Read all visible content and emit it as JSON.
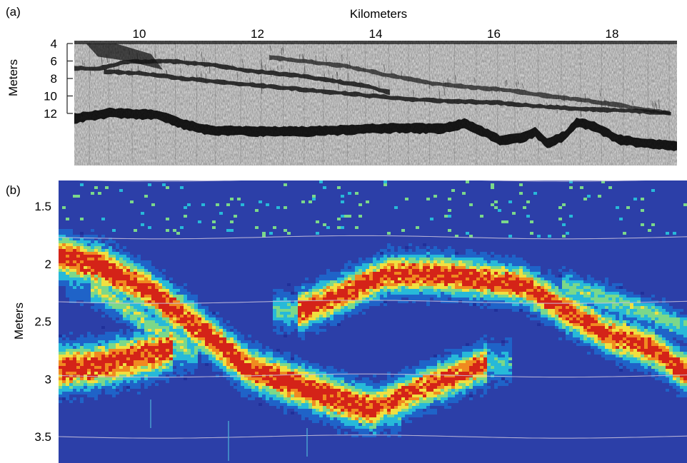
{
  "chart_data": [
    {
      "type": "heatmap",
      "panel_label": "(a)",
      "xlabel": "Kilometers",
      "ylabel": "Meters",
      "x_ticks": [
        10,
        12,
        14,
        16,
        18
      ],
      "y_ticks": [
        4,
        6,
        8,
        10,
        12
      ],
      "xlim": [
        8.9,
        19.1
      ],
      "ylim": [
        4,
        12
      ],
      "x_axis_position": "top",
      "y_axis_inverted": true,
      "colors": {
        "background": "#e2e2e2",
        "echo": "#1b1b1b"
      },
      "bottom_profile": {
        "x": [
          8.9,
          9.5,
          10.3,
          10.7,
          11.2,
          12.0,
          12.8,
          13.6,
          14.4,
          15.1,
          15.5,
          15.8,
          16.1,
          16.5,
          16.7,
          16.9,
          17.2,
          17.4,
          17.7,
          18.1,
          18.6,
          19.1
        ],
        "depth": [
          12.0,
          11.4,
          11.6,
          12.6,
          13.4,
          13.5,
          13.5,
          13.3,
          13.1,
          13.2,
          12.6,
          13.5,
          14.5,
          14.2,
          13.6,
          14.9,
          14.0,
          12.5,
          12.9,
          14.4,
          14.9,
          15.2
        ]
      },
      "layers": [
        {
          "x": [
            8.9,
            9.3,
            9.8,
            10.5,
            11.2,
            11.8,
            12.6,
            13.3,
            13.8,
            14.3
          ],
          "depth": [
            6.8,
            6.9,
            6.1,
            6.0,
            6.4,
            7.1,
            7.6,
            8.3,
            8.8,
            9.7
          ]
        },
        {
          "x": [
            9.4,
            10.0,
            10.6,
            11.4,
            12.2,
            13.0,
            13.8,
            14.6,
            15.3,
            16.1,
            16.8,
            17.5,
            18.3,
            19.0
          ],
          "depth": [
            7.2,
            7.4,
            7.9,
            8.4,
            8.9,
            9.4,
            9.9,
            10.4,
            10.6,
            10.8,
            11.2,
            11.5,
            11.7,
            12.0
          ]
        },
        {
          "x": [
            12.2,
            12.8,
            13.5,
            14.2,
            15.0,
            15.6,
            16.2,
            16.8,
            17.4,
            18.0,
            18.6,
            19.0
          ],
          "depth": [
            5.6,
            6.0,
            6.6,
            7.6,
            8.6,
            9.0,
            9.3,
            9.9,
            10.4,
            10.9,
            11.6,
            12.0
          ]
        }
      ]
    },
    {
      "type": "heatmap",
      "panel_label": "(b)",
      "xlabel": "",
      "ylabel": "Meters",
      "y_ticks": [
        1.5,
        2,
        2.5,
        3,
        3.5
      ],
      "ylim": [
        1.3,
        3.7
      ],
      "y_axis_inverted": true,
      "colormap": [
        "#20309a",
        "#1f63c8",
        "#27b9d9",
        "#7bd88a",
        "#f0e040",
        "#f08a20",
        "#d42318",
        "#8b0f0f"
      ],
      "background_color": "#2c3fa8",
      "guide_lines_depth": [
        1.27,
        1.77,
        2.33,
        2.97,
        3.5
      ],
      "bands": [
        {
          "name_hint": "lower-left",
          "x": [
            0.0,
            0.05,
            0.12,
            0.18
          ],
          "depth": [
            2.9,
            2.88,
            2.8,
            2.72
          ],
          "intensity": 0.95,
          "width": 0.07
        },
        {
          "name_hint": "main",
          "x": [
            0.0,
            0.06,
            0.14,
            0.22,
            0.3,
            0.38,
            0.46,
            0.5
          ],
          "depth": [
            1.92,
            2.0,
            2.22,
            2.55,
            2.9,
            3.05,
            3.2,
            3.25
          ],
          "intensity": 1.0,
          "width": 0.065
        },
        {
          "name_hint": "rising",
          "x": [
            0.5,
            0.56,
            0.62,
            0.68
          ],
          "depth": [
            3.25,
            3.1,
            2.98,
            2.85
          ],
          "intensity": 0.9,
          "width": 0.06
        },
        {
          "name_hint": "upper-arch",
          "x": [
            0.38,
            0.45,
            0.52,
            0.6,
            0.67,
            0.74,
            0.8,
            0.87,
            0.94,
            1.0
          ],
          "depth": [
            2.4,
            2.25,
            2.08,
            2.08,
            2.12,
            2.18,
            2.38,
            2.6,
            2.72,
            2.95
          ],
          "intensity": 0.95,
          "width": 0.06
        },
        {
          "name_hint": "upper-right-faint",
          "x": [
            0.8,
            0.87,
            0.93,
            1.0
          ],
          "depth": [
            2.18,
            2.3,
            2.4,
            2.55
          ],
          "intensity": 0.45,
          "width": 0.045
        },
        {
          "name_hint": "left-faint",
          "x": [
            0.05,
            0.1,
            0.15,
            0.2
          ],
          "depth": [
            2.2,
            2.35,
            2.55,
            2.7
          ],
          "intensity": 0.5,
          "width": 0.05
        }
      ]
    }
  ]
}
